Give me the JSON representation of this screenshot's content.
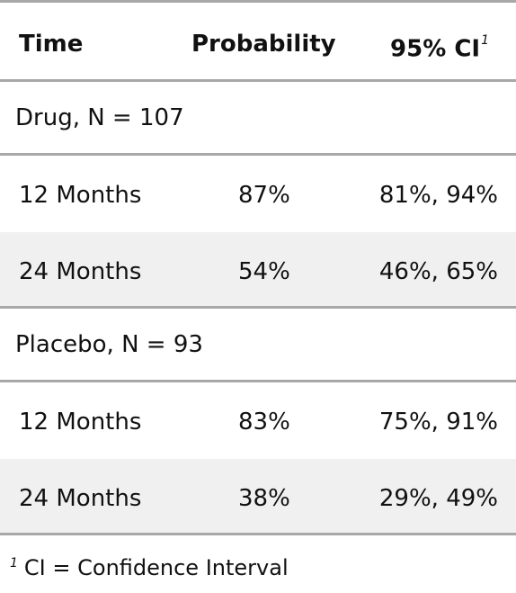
{
  "table": {
    "columns": {
      "time": "Time",
      "probability": "Probability",
      "ci": "95% CI",
      "ci_footnote_mark": "1"
    },
    "groups": [
      {
        "label": "Drug, N = 107",
        "rows": [
          {
            "time": "12 Months",
            "probability": "87%",
            "ci": "81%, 94%"
          },
          {
            "time": "24 Months",
            "probability": "54%",
            "ci": "46%, 65%"
          }
        ]
      },
      {
        "label": "Placebo, N = 93",
        "rows": [
          {
            "time": "12 Months",
            "probability": "83%",
            "ci": "75%, 91%"
          },
          {
            "time": "24 Months",
            "probability": "38%",
            "ci": "29%, 49%"
          }
        ]
      }
    ]
  },
  "footnote": {
    "mark": "1",
    "text": "CI = Confidence Interval"
  },
  "colors": {
    "rule": "#a8a8a8",
    "stripe": "#f0f0f0",
    "text": "#111111"
  }
}
